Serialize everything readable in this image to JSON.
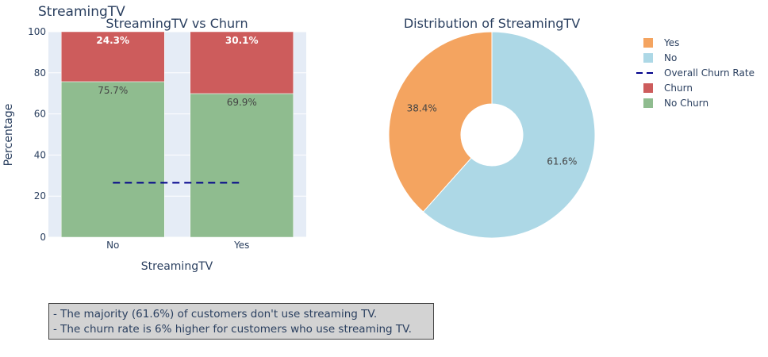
{
  "figure_title": "StreamingTV",
  "chart_data": [
    {
      "type": "bar",
      "stacked": true,
      "title": "StreamingTV vs Churn",
      "xlabel": "StreamingTV",
      "ylabel": "Percentage",
      "categories": [
        "No",
        "Yes"
      ],
      "ylim": [
        0,
        100
      ],
      "yticks": [
        "0",
        "20",
        "40",
        "60",
        "80",
        "100"
      ],
      "series": [
        {
          "name": "No Churn",
          "values": [
            75.7,
            69.9
          ],
          "labels": [
            "75.7%",
            "69.9%"
          ],
          "color": "#8fbc8f"
        },
        {
          "name": "Churn",
          "values": [
            24.3,
            30.1
          ],
          "labels": [
            "24.3%",
            "30.1%"
          ],
          "color": "#cd5c5c"
        }
      ],
      "reference_line": {
        "name": "Overall Churn Rate",
        "value": 26.5,
        "color": "#00008b",
        "style": "dashed"
      },
      "grid": true
    },
    {
      "type": "pie",
      "donut": true,
      "title": "Distribution of StreamingTV",
      "slices": [
        {
          "name": "No",
          "value": 61.6,
          "label": "61.6%",
          "color": "#add8e6"
        },
        {
          "name": "Yes",
          "value": 38.4,
          "label": "38.4%",
          "color": "#f4a460"
        }
      ]
    }
  ],
  "legend": {
    "position": "right",
    "items": [
      {
        "label": "Yes",
        "kind": "square",
        "color": "#f4a460"
      },
      {
        "label": "No",
        "kind": "square",
        "color": "#add8e6"
      },
      {
        "label": "Overall Churn Rate",
        "kind": "dash",
        "color": "#00008b"
      },
      {
        "label": "Churn",
        "kind": "square",
        "color": "#cd5c5c"
      },
      {
        "label": "No Churn",
        "kind": "square",
        "color": "#8fbc8f"
      }
    ]
  },
  "notes": [
    "- The majority (61.6%) of customers don't use streaming TV.",
    "- The churn rate is 6% higher for customers who use streaming TV."
  ]
}
